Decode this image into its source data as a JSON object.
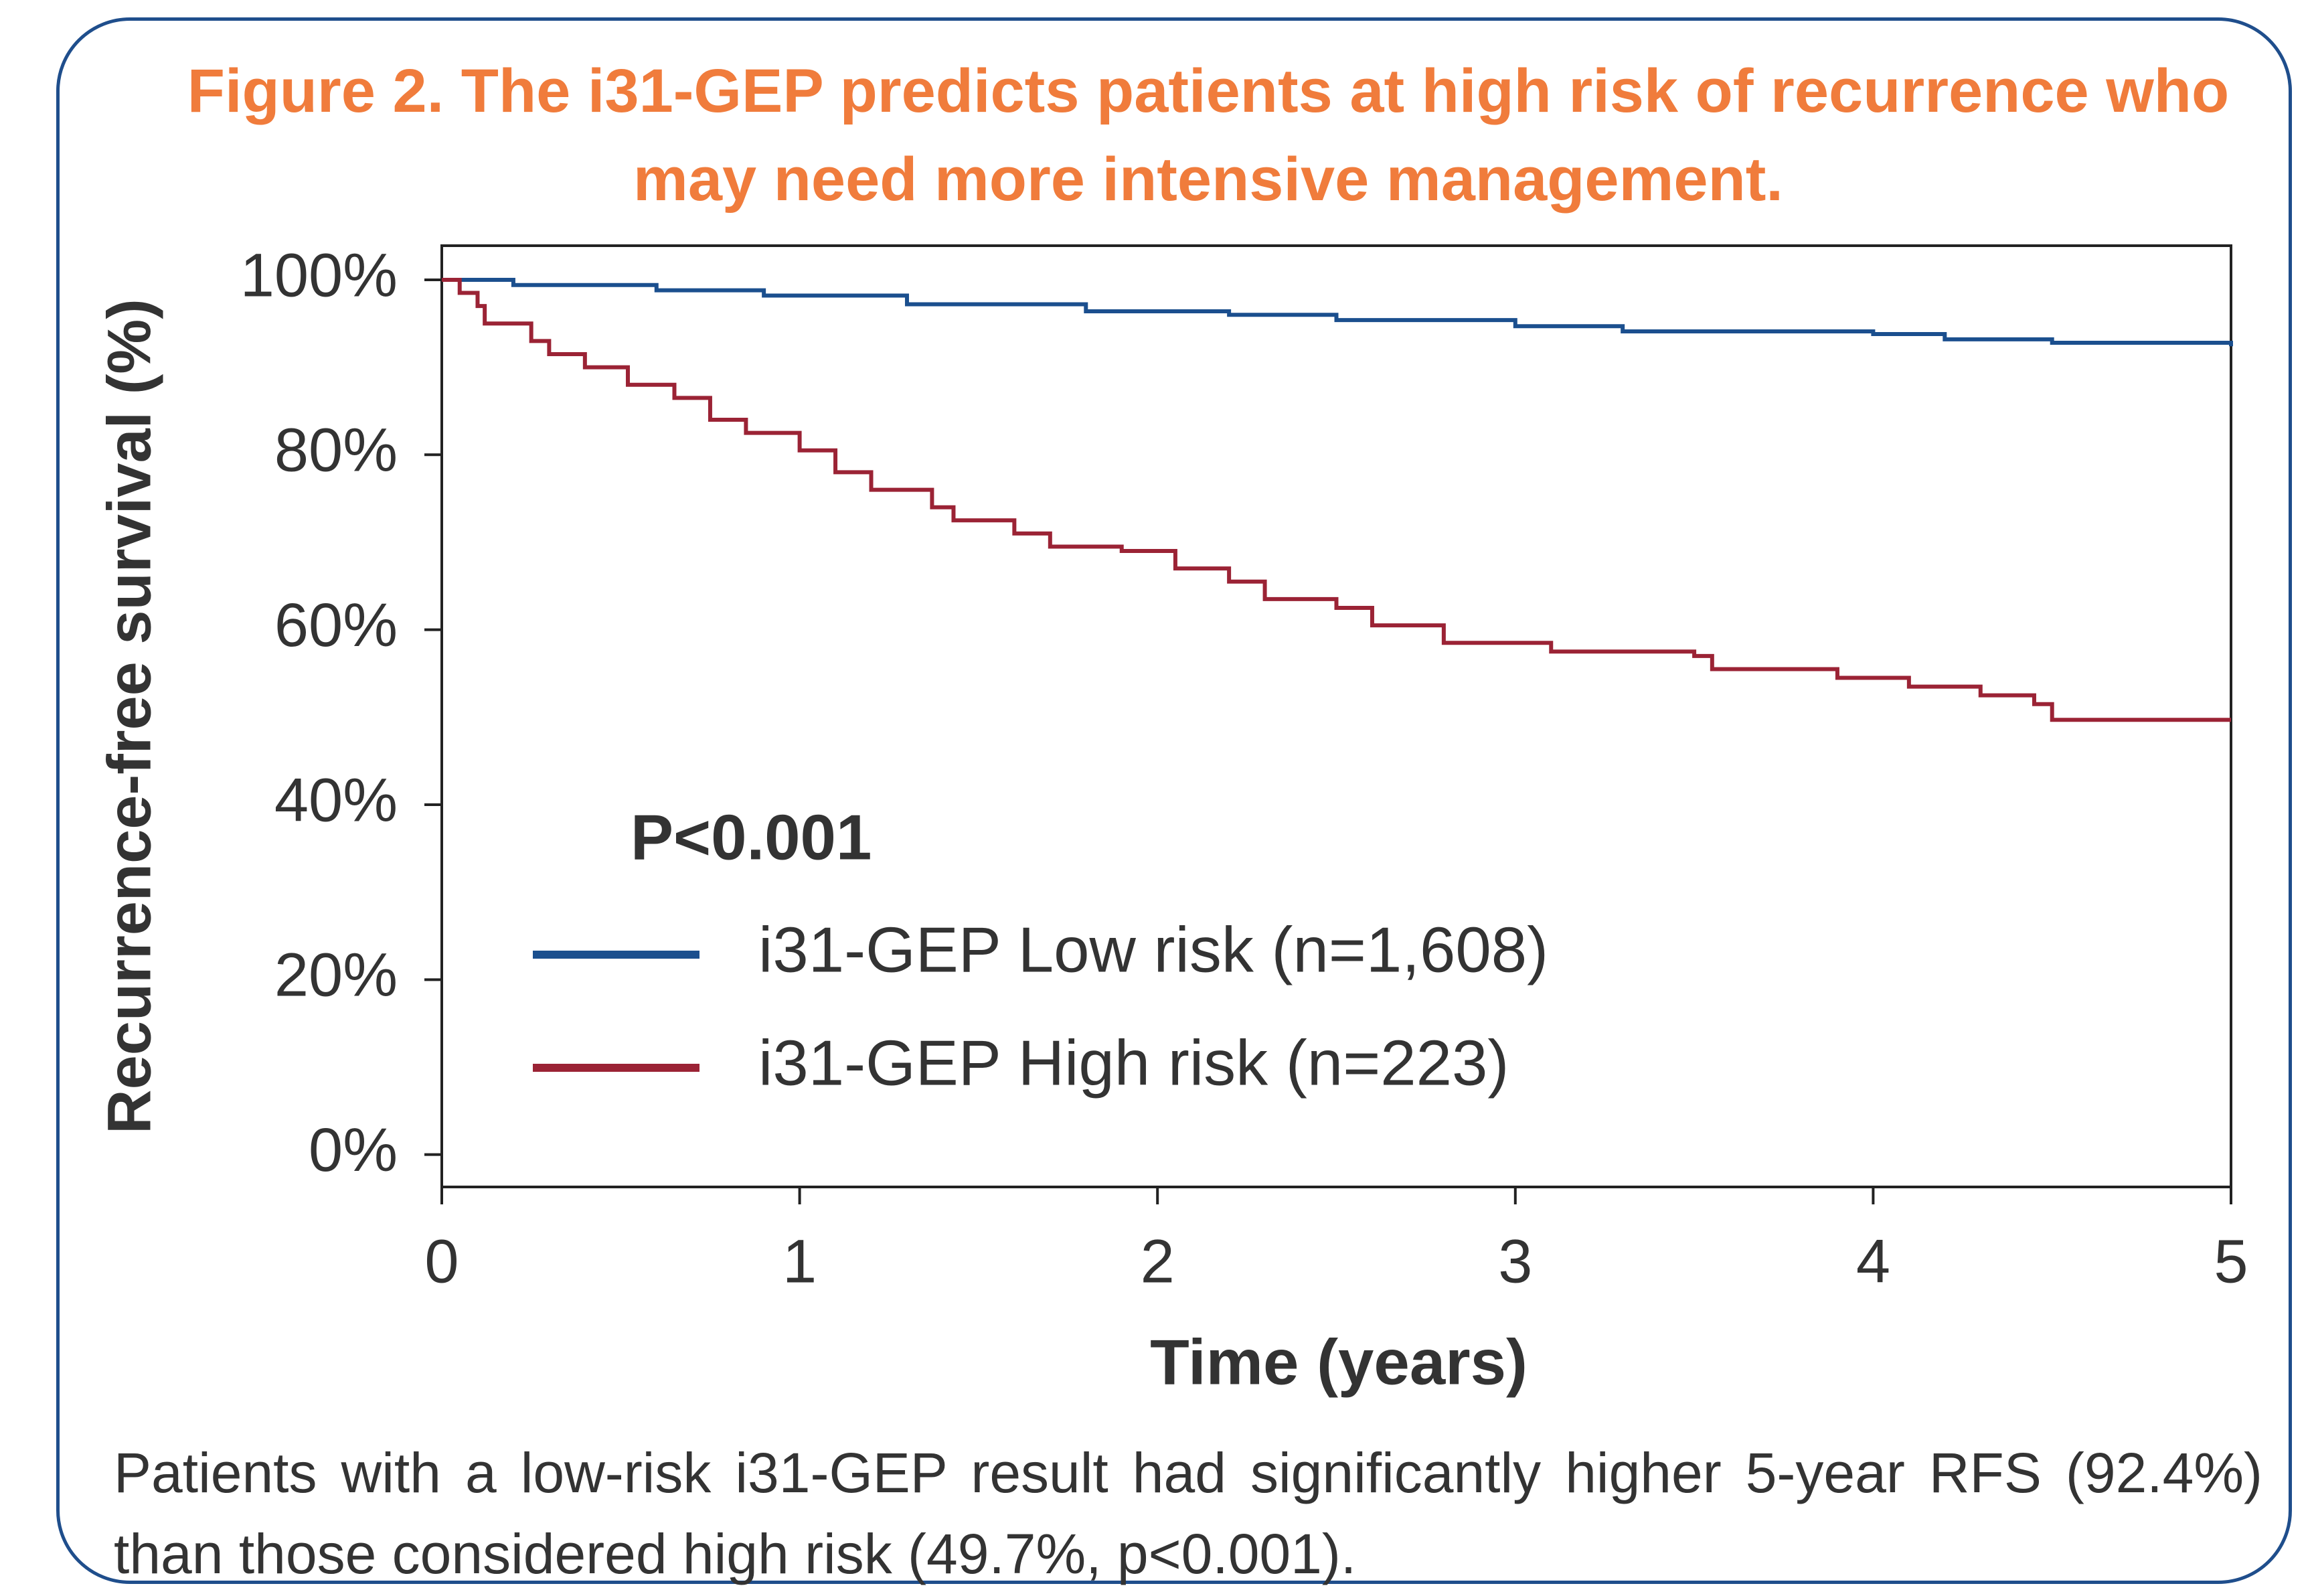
{
  "chart_data": {
    "type": "step",
    "title": "Figure 2. The i31-GEP predicts patients at high risk of recurrence who may need more intensive management.",
    "x_label": "Time (years)",
    "y_label": "Recurrence-free survival (%)",
    "annotation": "P<0.001",
    "caption": "Patients with a low-risk i31-GEP result had significantly higher 5-year RFS (92.4%) than those considered high risk (49.7%, p<0.001).",
    "xlim": [
      0,
      5
    ],
    "xticks": [
      0,
      1,
      2,
      3,
      4,
      5
    ],
    "ylim": [
      -3.7,
      103.9
    ],
    "yticks": [
      {
        "value": 0,
        "label": "0%"
      },
      {
        "value": 20,
        "label": "20%"
      },
      {
        "value": 40,
        "label": "40%"
      },
      {
        "value": 60,
        "label": "60%"
      },
      {
        "value": 80,
        "label": "80%"
      },
      {
        "value": 100,
        "label": "100%"
      }
    ],
    "grid": false,
    "series": [
      {
        "name": "i31-GEP Low risk (n=1,608)",
        "color": "#1b4f8e",
        "x": [
          0,
          0.2,
          0.6,
          0.9,
          1.3,
          1.8,
          2.2,
          2.5,
          3,
          3.3,
          4,
          4.2,
          4.5,
          5
        ],
        "values": [
          100,
          99.4,
          98.8,
          98.2,
          97.2,
          96.4,
          96,
          95.4,
          94.7,
          94.1,
          93.8,
          93.2,
          92.8,
          92.4
        ]
      },
      {
        "name": "i31-GEP High risk (n=223)",
        "color": "#9b2335",
        "x": [
          0,
          0.05,
          0.1,
          0.12,
          0.25,
          0.3,
          0.4,
          0.52,
          0.65,
          0.75,
          0.85,
          1.0,
          1.1,
          1.2,
          1.37,
          1.43,
          1.6,
          1.7,
          1.9,
          2.05,
          2.2,
          2.3,
          2.5,
          2.6,
          2.8,
          3.1,
          3.5,
          3.55,
          3.9,
          4.1,
          4.3,
          4.45,
          4.5,
          5
        ],
        "values": [
          100,
          98.5,
          97,
          95,
          93,
          91.5,
          90,
          88,
          86.5,
          84,
          82.5,
          80.5,
          78,
          76,
          74,
          72.5,
          71,
          69.5,
          69,
          67,
          65.5,
          63.5,
          62.5,
          60.5,
          58.5,
          57.5,
          57,
          55.5,
          54.5,
          53.5,
          52.5,
          51.5,
          49.7,
          49.7
        ]
      }
    ]
  }
}
